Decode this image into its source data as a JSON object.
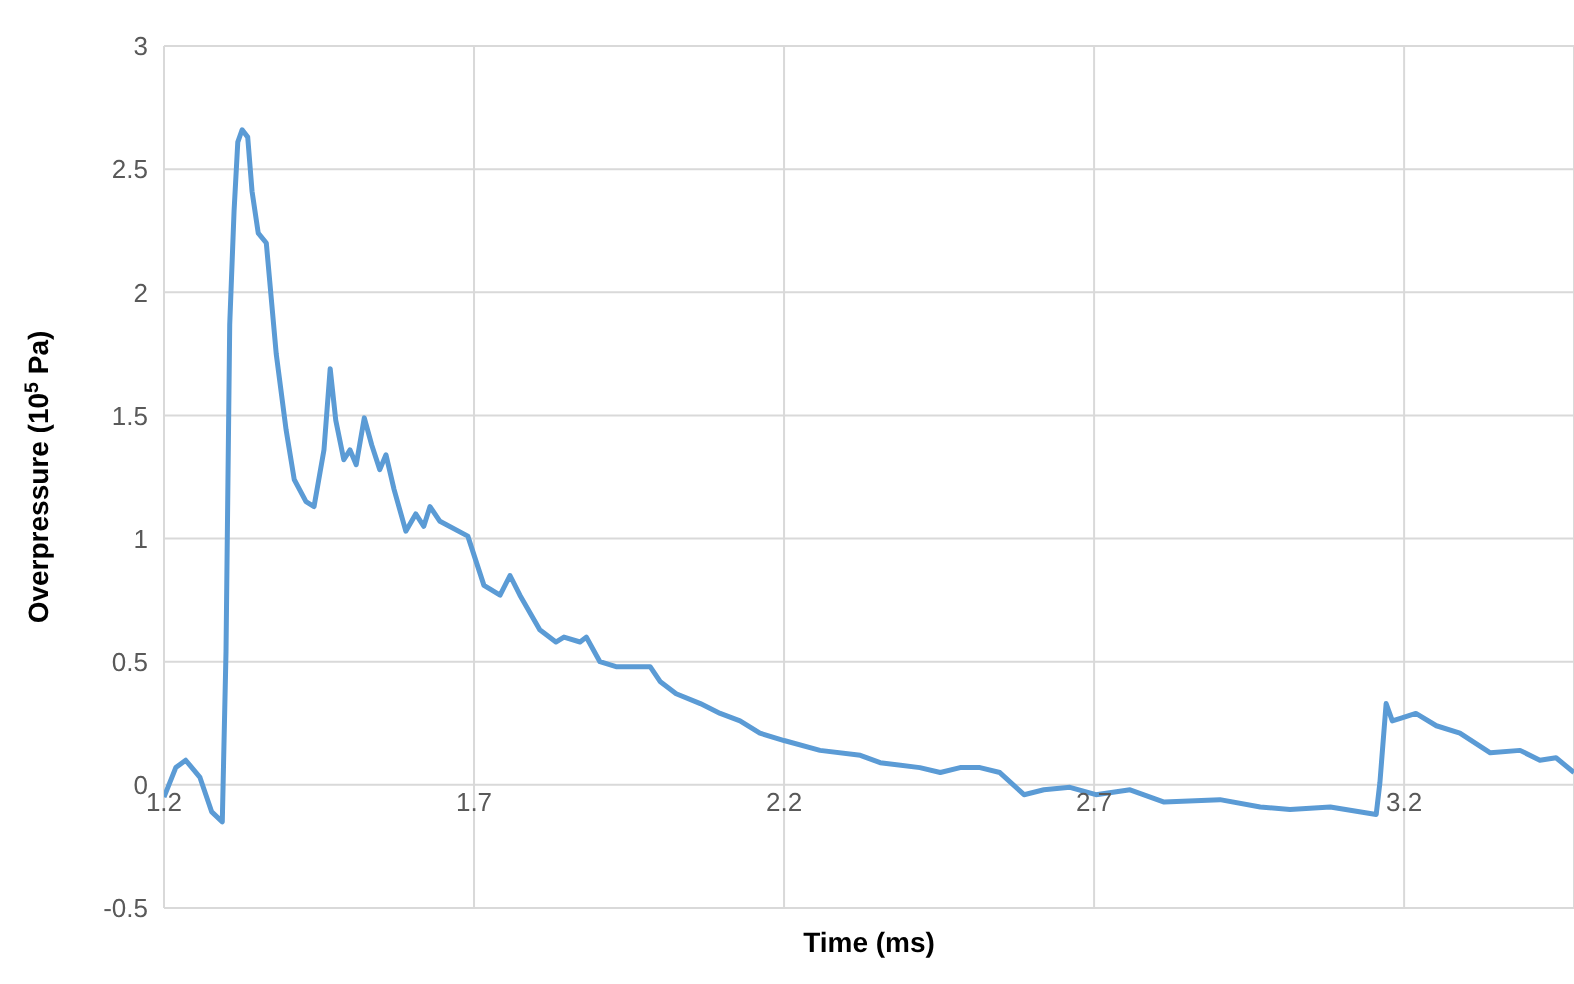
{
  "chart_data": {
    "type": "line",
    "xlabel": "Time (ms)",
    "ylabel": "Overpressure (10$^{5}$ Pa)",
    "xlim": [
      1.2,
      3.474
    ],
    "xticks": [
      1.2,
      1.7,
      2.2,
      2.7,
      3.2
    ],
    "ylim": [
      -0.5,
      3
    ],
    "yticks": [
      -0.5,
      0,
      0.5,
      1,
      1.5,
      2,
      2.5,
      3
    ],
    "grid": true,
    "marker": "none",
    "line_style": "solid",
    "series": [
      {
        "color": "#5b9bd5",
        "x": [
          1.2,
          1.219,
          1.235,
          1.258,
          1.277,
          1.294,
          1.3,
          1.306,
          1.313,
          1.319,
          1.326,
          1.335,
          1.342,
          1.352,
          1.365,
          1.381,
          1.397,
          1.41,
          1.429,
          1.442,
          1.458,
          1.468,
          1.477,
          1.49,
          1.5,
          1.51,
          1.523,
          1.535,
          1.548,
          1.558,
          1.571,
          1.59,
          1.606,
          1.619,
          1.629,
          1.645,
          1.69,
          1.716,
          1.742,
          1.758,
          1.774,
          1.806,
          1.832,
          1.845,
          1.871,
          1.881,
          1.903,
          1.929,
          1.984,
          2.0,
          2.026,
          2.065,
          2.097,
          2.129,
          2.161,
          2.2,
          2.258,
          2.323,
          2.355,
          2.419,
          2.452,
          2.484,
          2.516,
          2.548,
          2.587,
          2.619,
          2.661,
          2.703,
          2.758,
          2.813,
          2.903,
          2.968,
          3.016,
          3.081,
          3.155,
          3.161,
          3.171,
          3.181,
          3.194,
          3.219,
          3.252,
          3.29,
          3.339,
          3.387,
          3.419,
          3.445,
          3.474
        ],
        "values": [
          -0.05,
          0.07,
          0.1,
          0.03,
          -0.11,
          -0.15,
          0.54,
          1.87,
          2.33,
          2.61,
          2.66,
          2.63,
          2.41,
          2.24,
          2.2,
          1.75,
          1.44,
          1.24,
          1.15,
          1.13,
          1.36,
          1.69,
          1.48,
          1.32,
          1.36,
          1.3,
          1.49,
          1.38,
          1.28,
          1.34,
          1.2,
          1.03,
          1.1,
          1.05,
          1.13,
          1.07,
          1.01,
          0.81,
          0.77,
          0.85,
          0.77,
          0.63,
          0.58,
          0.6,
          0.58,
          0.6,
          0.5,
          0.48,
          0.48,
          0.42,
          0.37,
          0.33,
          0.29,
          0.26,
          0.21,
          0.18,
          0.14,
          0.12,
          0.09,
          0.07,
          0.05,
          0.07,
          0.07,
          0.05,
          -0.04,
          -0.02,
          -0.01,
          -0.04,
          -0.02,
          -0.07,
          -0.06,
          -0.09,
          -0.1,
          -0.09,
          -0.12,
          0.01,
          0.33,
          0.26,
          0.27,
          0.29,
          0.24,
          0.21,
          0.13,
          0.14,
          0.1,
          0.11,
          0.05
        ]
      }
    ]
  }
}
